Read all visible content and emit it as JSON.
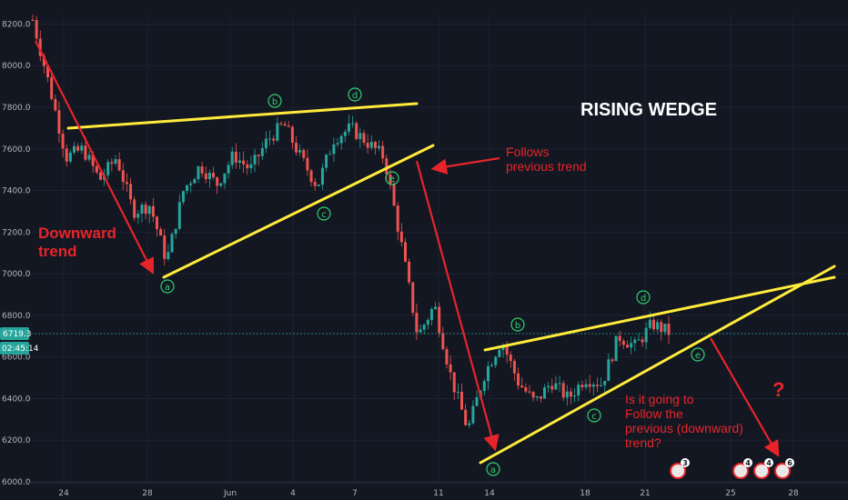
{
  "chart_data": {
    "type": "candlestick",
    "title": "RISING WEDGE",
    "ylim": [
      6000,
      8250
    ],
    "y_ticks": [
      "6000.0",
      "6200.0",
      "6400.0",
      "6600.0",
      "6800.0",
      "7000.0",
      "7200.0",
      "7400.0",
      "7600.0",
      "7800.0",
      "8000.0",
      "8200.0"
    ],
    "x_ticks": [
      "24",
      "28",
      "Jun",
      "4",
      "7",
      "11",
      "14",
      "18",
      "21",
      "25",
      "28"
    ],
    "current_price": "6719.3",
    "countdown": "02:45:14",
    "annotations": {
      "left_trend_line1": "Downward",
      "left_trend_line2": "trend",
      "follows_line1": "Follows",
      "follows_line2": "previous trend",
      "question_line1": "Is it going to",
      "question_line2": "Follow the",
      "question_line3": "previous (downward)",
      "question_line4": "trend?",
      "question_mark": "?"
    },
    "wave_labels_first": [
      "a",
      "b",
      "c",
      "d",
      "e"
    ],
    "wave_labels_second": [
      "a",
      "b",
      "c",
      "d",
      "e"
    ],
    "event_badges": [
      "3",
      "4",
      "4",
      "6"
    ],
    "series_approx": [
      {
        "t": 0,
        "v": 8220
      },
      {
        "t": 4,
        "v": 7900
      },
      {
        "t": 8,
        "v": 7560
      },
      {
        "t": 12,
        "v": 7600
      },
      {
        "t": 16,
        "v": 7450
      },
      {
        "t": 20,
        "v": 7560
      },
      {
        "t": 24,
        "v": 7300
      },
      {
        "t": 28,
        "v": 7330
      },
      {
        "t": 32,
        "v": 7060
      },
      {
        "t": 36,
        "v": 7400
      },
      {
        "t": 40,
        "v": 7520
      },
      {
        "t": 44,
        "v": 7430
      },
      {
        "t": 48,
        "v": 7570
      },
      {
        "t": 52,
        "v": 7500
      },
      {
        "t": 56,
        "v": 7640
      },
      {
        "t": 60,
        "v": 7720
      },
      {
        "t": 64,
        "v": 7560
      },
      {
        "t": 68,
        "v": 7420
      },
      {
        "t": 72,
        "v": 7650
      },
      {
        "t": 76,
        "v": 7700
      },
      {
        "t": 80,
        "v": 7630
      },
      {
        "t": 84,
        "v": 7560
      },
      {
        "t": 88,
        "v": 7150
      },
      {
        "t": 92,
        "v": 6700
      },
      {
        "t": 96,
        "v": 6850
      },
      {
        "t": 100,
        "v": 6500
      },
      {
        "t": 104,
        "v": 6250
      },
      {
        "t": 108,
        "v": 6520
      },
      {
        "t": 112,
        "v": 6680
      },
      {
        "t": 116,
        "v": 6480
      },
      {
        "t": 120,
        "v": 6380
      },
      {
        "t": 124,
        "v": 6480
      },
      {
        "t": 128,
        "v": 6400
      },
      {
        "t": 132,
        "v": 6500
      },
      {
        "t": 136,
        "v": 6470
      },
      {
        "t": 140,
        "v": 6700
      },
      {
        "t": 144,
        "v": 6650
      },
      {
        "t": 148,
        "v": 6760
      },
      {
        "t": 152,
        "v": 6719
      }
    ]
  }
}
